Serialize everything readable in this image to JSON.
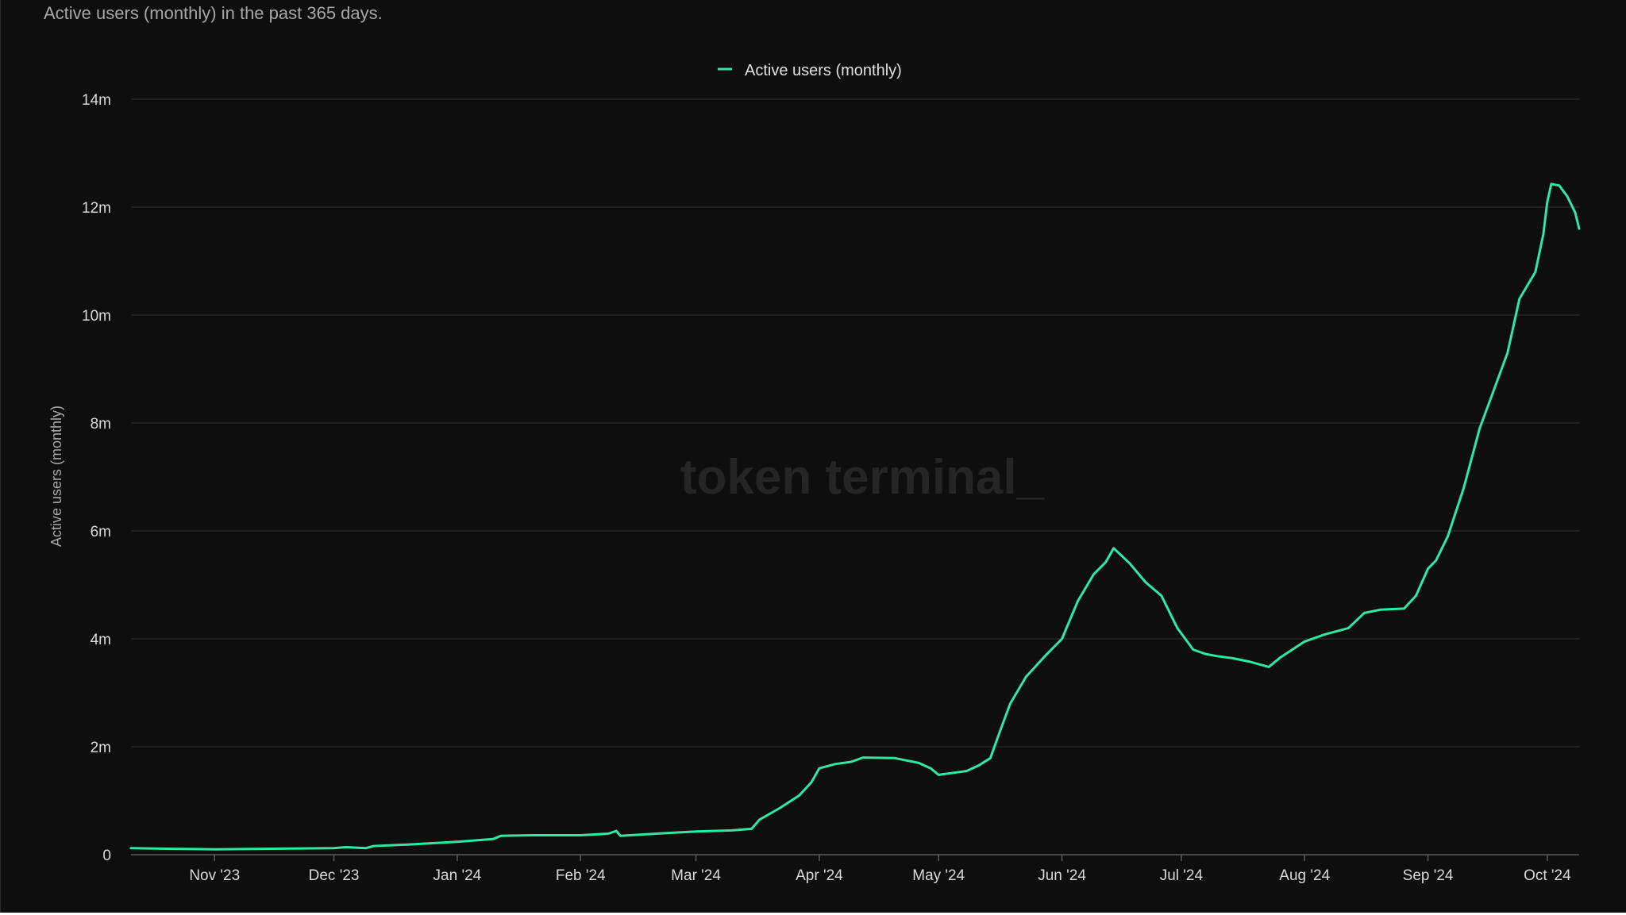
{
  "subtitle": "Active users (monthly) in the past 365 days.",
  "watermark": "token terminal_",
  "colors": {
    "background": "#0e0e0e",
    "line": "#2ee8a6",
    "grid": "#333333",
    "text": "#d9d9d9"
  },
  "chart_data": {
    "type": "line",
    "title": "",
    "subtitle": "Active users (monthly) in the past 365 days.",
    "xlabel": "",
    "ylabel": "Active users (monthly)",
    "ylim": [
      0,
      14000000
    ],
    "y_ticks": [
      0,
      2000000,
      4000000,
      6000000,
      8000000,
      10000000,
      12000000,
      14000000
    ],
    "y_tick_labels": [
      "0",
      "2m",
      "4m",
      "6m",
      "8m",
      "10m",
      "12m",
      "14m"
    ],
    "xlim": [
      "2023-10-11",
      "2024-10-09"
    ],
    "x_ticks": [
      {
        "date": "2023-11-01",
        "label": "Nov '23"
      },
      {
        "date": "2023-12-01",
        "label": "Dec '23"
      },
      {
        "date": "2024-01-01",
        "label": "Jan '24"
      },
      {
        "date": "2024-02-01",
        "label": "Feb '24"
      },
      {
        "date": "2024-03-01",
        "label": "Mar '24"
      },
      {
        "date": "2024-04-01",
        "label": "Apr '24"
      },
      {
        "date": "2024-05-01",
        "label": "May '24"
      },
      {
        "date": "2024-06-01",
        "label": "Jun '24"
      },
      {
        "date": "2024-07-01",
        "label": "Jul '24"
      },
      {
        "date": "2024-08-01",
        "label": "Aug '24"
      },
      {
        "date": "2024-09-01",
        "label": "Sep '24"
      },
      {
        "date": "2024-10-01",
        "label": "Oct '24"
      }
    ],
    "grid": true,
    "legend": "top-center",
    "series": [
      {
        "name": "Active users (monthly)",
        "color": "#2ee8a6",
        "points": [
          [
            "2023-10-11",
            120000
          ],
          [
            "2023-10-20",
            110000
          ],
          [
            "2023-11-01",
            100000
          ],
          [
            "2023-11-15",
            110000
          ],
          [
            "2023-12-01",
            120000
          ],
          [
            "2023-12-04",
            140000
          ],
          [
            "2023-12-09",
            120000
          ],
          [
            "2023-12-11",
            160000
          ],
          [
            "2023-12-20",
            190000
          ],
          [
            "2024-01-01",
            240000
          ],
          [
            "2024-01-10",
            290000
          ],
          [
            "2024-01-12",
            350000
          ],
          [
            "2024-01-20",
            360000
          ],
          [
            "2024-02-01",
            360000
          ],
          [
            "2024-02-08",
            390000
          ],
          [
            "2024-02-10",
            440000
          ],
          [
            "2024-02-11",
            350000
          ],
          [
            "2024-02-20",
            390000
          ],
          [
            "2024-03-01",
            430000
          ],
          [
            "2024-03-10",
            450000
          ],
          [
            "2024-03-15",
            480000
          ],
          [
            "2024-03-17",
            650000
          ],
          [
            "2024-03-22",
            860000
          ],
          [
            "2024-03-27",
            1100000
          ],
          [
            "2024-03-30",
            1340000
          ],
          [
            "2024-04-01",
            1600000
          ],
          [
            "2024-04-05",
            1680000
          ],
          [
            "2024-04-09",
            1720000
          ],
          [
            "2024-04-12",
            1800000
          ],
          [
            "2024-04-20",
            1790000
          ],
          [
            "2024-04-26",
            1700000
          ],
          [
            "2024-04-29",
            1600000
          ],
          [
            "2024-05-01",
            1480000
          ],
          [
            "2024-05-04",
            1510000
          ],
          [
            "2024-05-08",
            1550000
          ],
          [
            "2024-05-11",
            1650000
          ],
          [
            "2024-05-14",
            1790000
          ],
          [
            "2024-05-16",
            2200000
          ],
          [
            "2024-05-19",
            2800000
          ],
          [
            "2024-05-23",
            3300000
          ],
          [
            "2024-05-28",
            3700000
          ],
          [
            "2024-06-01",
            4000000
          ],
          [
            "2024-06-05",
            4700000
          ],
          [
            "2024-06-09",
            5200000
          ],
          [
            "2024-06-12",
            5420000
          ],
          [
            "2024-06-14",
            5680000
          ],
          [
            "2024-06-18",
            5400000
          ],
          [
            "2024-06-22",
            5050000
          ],
          [
            "2024-06-26",
            4800000
          ],
          [
            "2024-06-30",
            4200000
          ],
          [
            "2024-07-04",
            3800000
          ],
          [
            "2024-07-07",
            3720000
          ],
          [
            "2024-07-10",
            3680000
          ],
          [
            "2024-07-14",
            3640000
          ],
          [
            "2024-07-18",
            3580000
          ],
          [
            "2024-07-23",
            3480000
          ],
          [
            "2024-07-26",
            3660000
          ],
          [
            "2024-08-01",
            3950000
          ],
          [
            "2024-08-06",
            4080000
          ],
          [
            "2024-08-12",
            4200000
          ],
          [
            "2024-08-16",
            4480000
          ],
          [
            "2024-08-20",
            4540000
          ],
          [
            "2024-08-26",
            4560000
          ],
          [
            "2024-08-29",
            4800000
          ],
          [
            "2024-09-01",
            5300000
          ],
          [
            "2024-09-03",
            5450000
          ],
          [
            "2024-09-06",
            5900000
          ],
          [
            "2024-09-10",
            6800000
          ],
          [
            "2024-09-14",
            7900000
          ],
          [
            "2024-09-17",
            8500000
          ],
          [
            "2024-09-21",
            9300000
          ],
          [
            "2024-09-24",
            10300000
          ],
          [
            "2024-09-28",
            10800000
          ],
          [
            "2024-09-30",
            11500000
          ],
          [
            "2024-10-01",
            12100000
          ],
          [
            "2024-10-02",
            12430000
          ],
          [
            "2024-10-04",
            12400000
          ],
          [
            "2024-10-06",
            12200000
          ],
          [
            "2024-10-08",
            11900000
          ],
          [
            "2024-10-09",
            11600000
          ]
        ]
      }
    ]
  }
}
